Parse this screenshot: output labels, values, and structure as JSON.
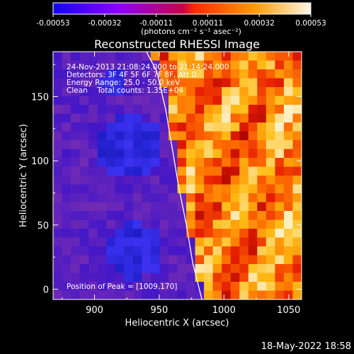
{
  "colorbar": {
    "tick_labels": [
      "-0.00053",
      "-0.00032",
      "-0.00011",
      "0.00011",
      "0.00032",
      "0.00053"
    ],
    "unit_label": "(photons cm⁻² s⁻¹ asec⁻²)",
    "colors": [
      "#1400ff",
      "#8a00ff",
      "#c7004a",
      "#ff2b00",
      "#ff9a00",
      "#fff7e8"
    ]
  },
  "chart_data": {
    "type": "heatmap",
    "title": "Reconstructed RHESSI Image",
    "xlabel": "Heliocentric X (arcsec)",
    "ylabel": "Heliocentric Y (arcsec)",
    "xlim": [
      868,
      1060
    ],
    "ylim": [
      -8,
      185
    ],
    "x_ticks": [
      "900",
      "950",
      "1000",
      "1050"
    ],
    "y_ticks": [
      "0",
      "50",
      "100",
      "150"
    ],
    "x_tick_values": [
      900,
      950,
      1000,
      1050
    ],
    "y_tick_values": [
      0,
      50,
      100,
      150
    ],
    "limb_x": [
      983,
      976,
      971,
      965,
      960,
      955,
      948,
      940
    ],
    "limb_y": [
      -8,
      20,
      50,
      80,
      110,
      140,
      170,
      185
    ],
    "peak_position": [
      1009,
      170
    ],
    "annotations": [
      "24-Nov-2013 21:08:24.000 to 21:14:24.000",
      "Detectors: 3F 4F 5F 6F 7F 8F, Att 0",
      "Energy Range: 25.0 - 50.0 keV",
      "Clean    Total counts: 1.35E+04",
      "Position of Peak = [1009,170]"
    ]
  },
  "footer": {
    "date": "18-May-2022 18:58"
  }
}
